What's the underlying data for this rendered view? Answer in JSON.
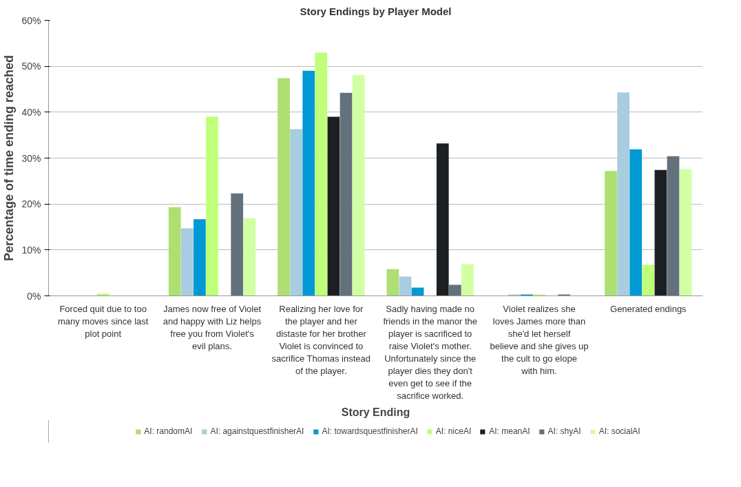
{
  "chart_data": {
    "type": "bar",
    "title": "Story Endings by Player Model",
    "xlabel": "Story Ending",
    "ylabel": "Percentage of time ending reached",
    "categories": [
      "Forced quit due to too many moves since last plot point",
      "James now free of Violet and happy with Liz helps free you from Violet's evil plans.",
      "Realizing her love for the player and her distaste for her brother Violet is convinced to sacrifice Thomas instead of the player.",
      "Sadly having made no friends in the manor the player is sacrificed to raise Violet's mother. Unfortunately since the player dies they don't even get to see if the sacrifice worked.",
      "Violet realizes she loves James more than she'd let herself believe and she gives up the cult to go elope with him.",
      "Generated endings"
    ],
    "series": [
      {
        "name": "AI: randomAI",
        "color": "#addf72",
        "values": [
          0,
          19.3,
          47.4,
          5.8,
          0,
          27.2
        ]
      },
      {
        "name": "AI: againstquestfinisherAI",
        "color": "#a8cce0",
        "values": [
          0,
          14.7,
          36.3,
          4.2,
          0.3,
          44.3
        ]
      },
      {
        "name": "AI: towardsquestfinisherAI",
        "color": "#0099d4",
        "values": [
          0,
          16.7,
          49.0,
          1.8,
          0.3,
          31.9
        ]
      },
      {
        "name": "AI: niceAI",
        "color": "#c0ff7a",
        "values": [
          0.5,
          39.0,
          53.0,
          0,
          0.3,
          6.8
        ]
      },
      {
        "name": "AI: meanAI",
        "color": "#1c2023",
        "values": [
          0,
          0,
          39.0,
          33.2,
          0,
          27.4
        ]
      },
      {
        "name": "AI: shyAI",
        "color": "#63717c",
        "values": [
          0,
          22.3,
          44.2,
          2.4,
          0.3,
          30.4
        ]
      },
      {
        "name": "AI: socialAI",
        "color": "#d2ffa4",
        "values": [
          0,
          16.9,
          48.1,
          6.9,
          0,
          27.6
        ]
      }
    ],
    "ylim": [
      0,
      60
    ],
    "yticks": [
      {
        "value": 0,
        "label": "0%"
      },
      {
        "value": 10,
        "label": "10%"
      },
      {
        "value": 20,
        "label": "20%"
      },
      {
        "value": 30,
        "label": "30%"
      },
      {
        "value": 40,
        "label": "40%"
      },
      {
        "value": 50,
        "label": "50%"
      },
      {
        "value": 60,
        "label": "60%"
      }
    ],
    "grid": "y",
    "legend": "bottom"
  }
}
